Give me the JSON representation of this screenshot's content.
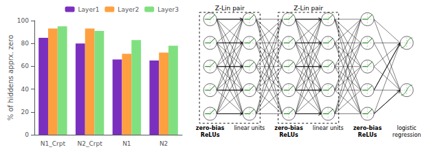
{
  "chart_data": [
    {
      "type": "bar",
      "ylabel": "% of hiddens apprx. zero",
      "categories": [
        "N1_Crpt",
        "N2_Crpt",
        "N1",
        "N2"
      ],
      "series": [
        {
          "name": "Layer1",
          "color": "#7B2FBE",
          "values": [
            85,
            80,
            66,
            65
          ]
        },
        {
          "name": "Layer2",
          "color": "#FFA040",
          "values": [
            93,
            93,
            71,
            72
          ]
        },
        {
          "name": "Layer3",
          "color": "#80E080",
          "values": [
            95,
            91,
            83,
            78
          ]
        }
      ],
      "ylim": [
        0,
        100
      ],
      "yticks": [
        0,
        20,
        40,
        60,
        80,
        100
      ],
      "legend": "upper right",
      "grid": false
    },
    {
      "type": "diagram",
      "annotations": [
        "Z-Lin pair",
        "Z-Lin pair",
        "zero-bias\nReLUs",
        "linear units",
        "zero-bias\nReLUs",
        "linear units",
        "zero-bias\nReLUs",
        "logistic\nregression"
      ]
    }
  ]
}
